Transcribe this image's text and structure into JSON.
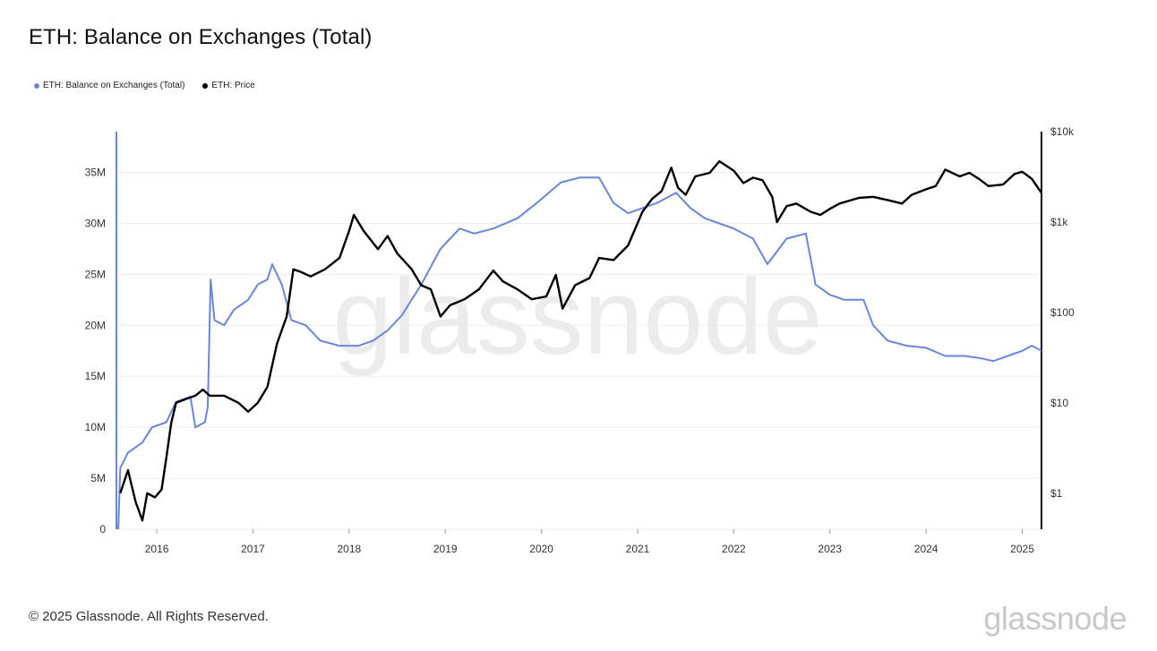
{
  "title": "ETH: Balance on Exchanges (Total)",
  "legend": [
    {
      "label": "ETH: Balance on Exchanges (Total)",
      "color": "#6a86d8"
    },
    {
      "label": "ETH: Price",
      "color": "#000000"
    }
  ],
  "footer": {
    "copyright": "© 2025 Glassnode. All Rights Reserved.",
    "brand": "glassnode"
  },
  "watermark": "glassnode",
  "chart_data": {
    "type": "line",
    "title": "ETH: Balance on Exchanges (Total)",
    "xlabel": "",
    "ylabel": "",
    "x_range": [
      2015.58,
      2025.2
    ],
    "ylim": [
      0,
      39000000
    ],
    "y2_scale": "log",
    "y2lim": [
      0.4,
      10000
    ],
    "x_ticks": [
      {
        "value": 2016,
        "label": "2016"
      },
      {
        "value": 2017,
        "label": "2017"
      },
      {
        "value": 2018,
        "label": "2018"
      },
      {
        "value": 2019,
        "label": "2019"
      },
      {
        "value": 2020,
        "label": "2020"
      },
      {
        "value": 2021,
        "label": "2021"
      },
      {
        "value": 2022,
        "label": "2022"
      },
      {
        "value": 2023,
        "label": "2023"
      },
      {
        "value": 2024,
        "label": "2024"
      },
      {
        "value": 2025,
        "label": "2025"
      }
    ],
    "y_ticks": [
      {
        "value": 0,
        "label": "0"
      },
      {
        "value": 5000000,
        "label": "5M"
      },
      {
        "value": 10000000,
        "label": "10M"
      },
      {
        "value": 15000000,
        "label": "15M"
      },
      {
        "value": 20000000,
        "label": "20M"
      },
      {
        "value": 25000000,
        "label": "25M"
      },
      {
        "value": 30000000,
        "label": "30M"
      },
      {
        "value": 35000000,
        "label": "35M"
      }
    ],
    "y2_ticks": [
      {
        "value": 1,
        "label": "$1"
      },
      {
        "value": 10,
        "label": "$10"
      },
      {
        "value": 100,
        "label": "$100"
      },
      {
        "value": 1000,
        "label": "$1k"
      },
      {
        "value": 10000,
        "label": "$10k"
      }
    ],
    "series": [
      {
        "name": "ETH: Balance on Exchanges (Total)",
        "color": "#6a86d8",
        "axis": "left",
        "points": [
          [
            2015.6,
            0
          ],
          [
            2015.62,
            6000000
          ],
          [
            2015.7,
            7500000
          ],
          [
            2015.85,
            8500000
          ],
          [
            2015.95,
            10000000
          ],
          [
            2016.1,
            10500000
          ],
          [
            2016.2,
            12500000
          ],
          [
            2016.35,
            13000000
          ],
          [
            2016.4,
            10000000
          ],
          [
            2016.5,
            10500000
          ],
          [
            2016.53,
            12000000
          ],
          [
            2016.56,
            24500000
          ],
          [
            2016.6,
            20500000
          ],
          [
            2016.7,
            20000000
          ],
          [
            2016.8,
            21500000
          ],
          [
            2016.95,
            22500000
          ],
          [
            2017.05,
            24000000
          ],
          [
            2017.15,
            24500000
          ],
          [
            2017.2,
            26000000
          ],
          [
            2017.3,
            24000000
          ],
          [
            2017.4,
            20500000
          ],
          [
            2017.55,
            20000000
          ],
          [
            2017.7,
            18500000
          ],
          [
            2017.9,
            18000000
          ],
          [
            2018.1,
            18000000
          ],
          [
            2018.25,
            18500000
          ],
          [
            2018.4,
            19500000
          ],
          [
            2018.55,
            21000000
          ],
          [
            2018.75,
            24000000
          ],
          [
            2018.95,
            27500000
          ],
          [
            2019.15,
            29500000
          ],
          [
            2019.3,
            29000000
          ],
          [
            2019.5,
            29500000
          ],
          [
            2019.75,
            30500000
          ],
          [
            2019.95,
            32000000
          ],
          [
            2020.2,
            34000000
          ],
          [
            2020.4,
            34500000
          ],
          [
            2020.6,
            34500000
          ],
          [
            2020.75,
            32000000
          ],
          [
            2020.9,
            31000000
          ],
          [
            2021.05,
            31500000
          ],
          [
            2021.2,
            32000000
          ],
          [
            2021.4,
            33000000
          ],
          [
            2021.55,
            31500000
          ],
          [
            2021.7,
            30500000
          ],
          [
            2021.85,
            30000000
          ],
          [
            2022.0,
            29500000
          ],
          [
            2022.2,
            28500000
          ],
          [
            2022.35,
            26000000
          ],
          [
            2022.55,
            28500000
          ],
          [
            2022.75,
            29000000
          ],
          [
            2022.85,
            24000000
          ],
          [
            2023.0,
            23000000
          ],
          [
            2023.15,
            22500000
          ],
          [
            2023.35,
            22500000
          ],
          [
            2023.45,
            20000000
          ],
          [
            2023.6,
            18500000
          ],
          [
            2023.8,
            18000000
          ],
          [
            2024.0,
            17800000
          ],
          [
            2024.2,
            17000000
          ],
          [
            2024.4,
            17000000
          ],
          [
            2024.55,
            16800000
          ],
          [
            2024.7,
            16500000
          ],
          [
            2024.85,
            17000000
          ],
          [
            2025.0,
            17500000
          ],
          [
            2025.1,
            18000000
          ],
          [
            2025.2,
            17500000
          ]
        ]
      },
      {
        "name": "ETH: Price",
        "color": "#000000",
        "axis": "right",
        "points": [
          [
            2015.62,
            1.0
          ],
          [
            2015.7,
            1.8
          ],
          [
            2015.78,
            0.8
          ],
          [
            2015.85,
            0.5
          ],
          [
            2015.9,
            1.0
          ],
          [
            2015.98,
            0.9
          ],
          [
            2016.05,
            1.1
          ],
          [
            2016.1,
            2.5
          ],
          [
            2016.15,
            6
          ],
          [
            2016.2,
            10
          ],
          [
            2016.3,
            11
          ],
          [
            2016.4,
            12
          ],
          [
            2016.48,
            14
          ],
          [
            2016.55,
            12
          ],
          [
            2016.7,
            12
          ],
          [
            2016.85,
            10
          ],
          [
            2016.95,
            8
          ],
          [
            2017.05,
            10
          ],
          [
            2017.15,
            15
          ],
          [
            2017.25,
            45
          ],
          [
            2017.35,
            90
          ],
          [
            2017.42,
            300
          ],
          [
            2017.5,
            280
          ],
          [
            2017.6,
            250
          ],
          [
            2017.75,
            300
          ],
          [
            2017.9,
            400
          ],
          [
            2018.0,
            800
          ],
          [
            2018.05,
            1200
          ],
          [
            2018.15,
            800
          ],
          [
            2018.3,
            500
          ],
          [
            2018.4,
            700
          ],
          [
            2018.5,
            450
          ],
          [
            2018.65,
            300
          ],
          [
            2018.75,
            200
          ],
          [
            2018.85,
            180
          ],
          [
            2018.95,
            90
          ],
          [
            2019.05,
            120
          ],
          [
            2019.2,
            140
          ],
          [
            2019.35,
            180
          ],
          [
            2019.5,
            290
          ],
          [
            2019.6,
            220
          ],
          [
            2019.75,
            180
          ],
          [
            2019.9,
            140
          ],
          [
            2020.05,
            150
          ],
          [
            2020.15,
            260
          ],
          [
            2020.22,
            110
          ],
          [
            2020.35,
            200
          ],
          [
            2020.5,
            240
          ],
          [
            2020.6,
            400
          ],
          [
            2020.75,
            380
          ],
          [
            2020.9,
            550
          ],
          [
            2021.05,
            1300
          ],
          [
            2021.15,
            1800
          ],
          [
            2021.25,
            2200
          ],
          [
            2021.35,
            4000
          ],
          [
            2021.42,
            2400
          ],
          [
            2021.5,
            2000
          ],
          [
            2021.6,
            3200
          ],
          [
            2021.75,
            3500
          ],
          [
            2021.85,
            4700
          ],
          [
            2022.0,
            3700
          ],
          [
            2022.1,
            2700
          ],
          [
            2022.2,
            3100
          ],
          [
            2022.3,
            2900
          ],
          [
            2022.4,
            1900
          ],
          [
            2022.45,
            1000
          ],
          [
            2022.55,
            1500
          ],
          [
            2022.65,
            1600
          ],
          [
            2022.8,
            1300
          ],
          [
            2022.9,
            1200
          ],
          [
            2023.0,
            1400
          ],
          [
            2023.1,
            1600
          ],
          [
            2023.3,
            1850
          ],
          [
            2023.45,
            1900
          ],
          [
            2023.6,
            1750
          ],
          [
            2023.75,
            1600
          ],
          [
            2023.85,
            2000
          ],
          [
            2024.0,
            2300
          ],
          [
            2024.1,
            2500
          ],
          [
            2024.2,
            3800
          ],
          [
            2024.35,
            3200
          ],
          [
            2024.45,
            3500
          ],
          [
            2024.55,
            3000
          ],
          [
            2024.65,
            2500
          ],
          [
            2024.8,
            2600
          ],
          [
            2024.92,
            3400
          ],
          [
            2025.0,
            3600
          ],
          [
            2025.1,
            3000
          ],
          [
            2025.2,
            2100
          ]
        ]
      }
    ]
  }
}
